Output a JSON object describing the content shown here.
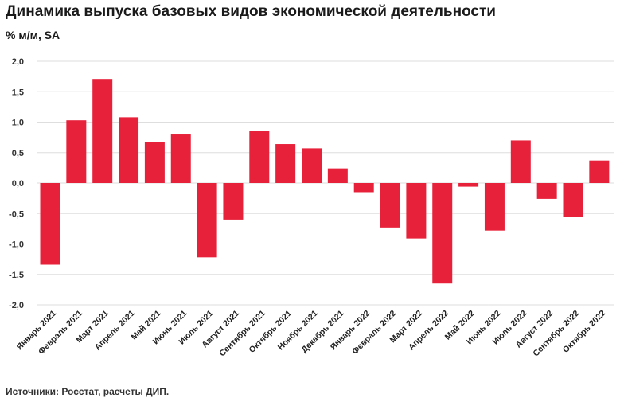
{
  "title": "Динамика выпуска базовых видов экономической деятельности",
  "subtitle": "% м/м, SA",
  "source": "Источники: Росстат, расчеты ДИП.",
  "colors": {
    "bar": "#e8213a",
    "grid": "#dedede"
  },
  "chart_data": {
    "type": "bar",
    "title": "Динамика выпуска базовых видов экономической деятельности",
    "ylabel": "% м/м, SA",
    "ylim": [
      -2.0,
      2.0
    ],
    "yticks": [
      "2,0",
      "1,5",
      "1,0",
      "0,5",
      "0,0",
      "-0,5",
      "-1,0",
      "-1,5",
      "-2,0"
    ],
    "ytick_values": [
      2.0,
      1.5,
      1.0,
      0.5,
      0.0,
      -0.5,
      -1.0,
      -1.5,
      -2.0
    ],
    "grid": true,
    "categories": [
      "Январь 2021",
      "Февраль 2021",
      "Март 2021",
      "Апрель 2021",
      "Май 2021",
      "Июнь 2021",
      "Июль 2021",
      "Август 2021",
      "Сентябрь 2021",
      "Октябрь 2021",
      "Ноябрь 2021",
      "Декабрь 2021",
      "Январь 2022",
      "Февраль 2022",
      "Март 2022",
      "Апрель 2022",
      "Май 2022",
      "Июнь 2022",
      "Июль 2022",
      "Август 2022",
      "Сентябрь 2022",
      "Октябрь 2022"
    ],
    "values": [
      -1.34,
      1.03,
      1.71,
      1.08,
      0.67,
      0.81,
      -1.22,
      -0.6,
      0.85,
      0.64,
      0.57,
      0.24,
      -0.15,
      -0.73,
      -0.91,
      -1.65,
      -0.06,
      -0.78,
      0.7,
      -0.26,
      -0.56,
      0.37
    ]
  }
}
